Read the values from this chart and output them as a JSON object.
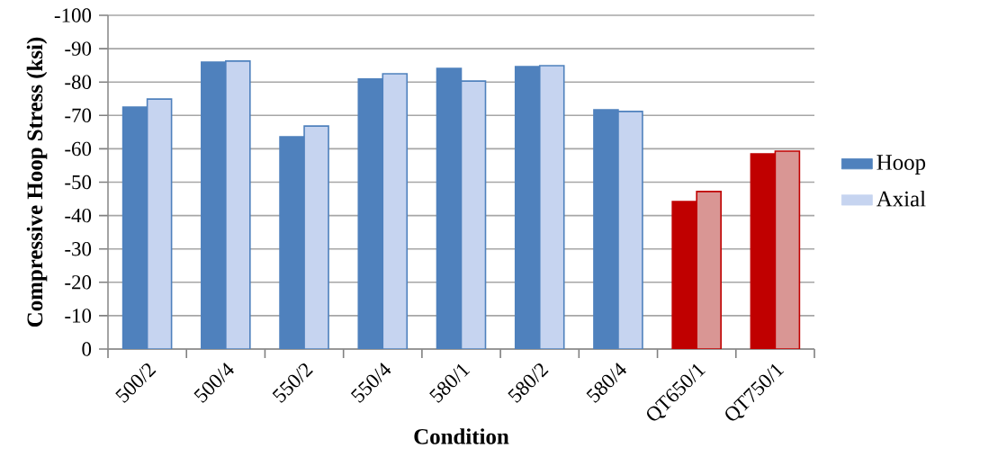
{
  "chart_data": {
    "type": "bar",
    "xlabel": "Condition",
    "ylabel": "Compressive Hoop Stress (ksi)",
    "categories": [
      "500/2",
      "500/4",
      "550/2",
      "550/4",
      "580/1",
      "580/2",
      "580/4",
      "QT650/1",
      "QT750/1"
    ],
    "series": [
      {
        "name": "Hoop",
        "colors": [
          "#4f81bd",
          "#4f81bd",
          "#4f81bd",
          "#4f81bd",
          "#4f81bd",
          "#4f81bd",
          "#4f81bd",
          "#c00000",
          "#c00000"
        ],
        "values": [
          -72.5,
          -86,
          -63.6,
          -80.9,
          -84.1,
          -84.6,
          -71.7,
          -44.2,
          -58.5
        ]
      },
      {
        "name": "Axial",
        "colors": [
          "#c6d4f0",
          "#c6d4f0",
          "#c6d4f0",
          "#c6d4f0",
          "#c6d4f0",
          "#c6d4f0",
          "#c6d4f0",
          "#d99694",
          "#d99694"
        ],
        "values": [
          -74.9,
          -86.3,
          -66.8,
          -82.5,
          -80.3,
          -84.9,
          -71.2,
          -47.2,
          -59.3
        ]
      }
    ],
    "ylim": [
      0,
      -100
    ],
    "yticks": [
      -100,
      -90,
      -80,
      -70,
      -60,
      -50,
      -40,
      -30,
      -20,
      -10,
      0
    ],
    "grid": "y",
    "legend": "right"
  }
}
